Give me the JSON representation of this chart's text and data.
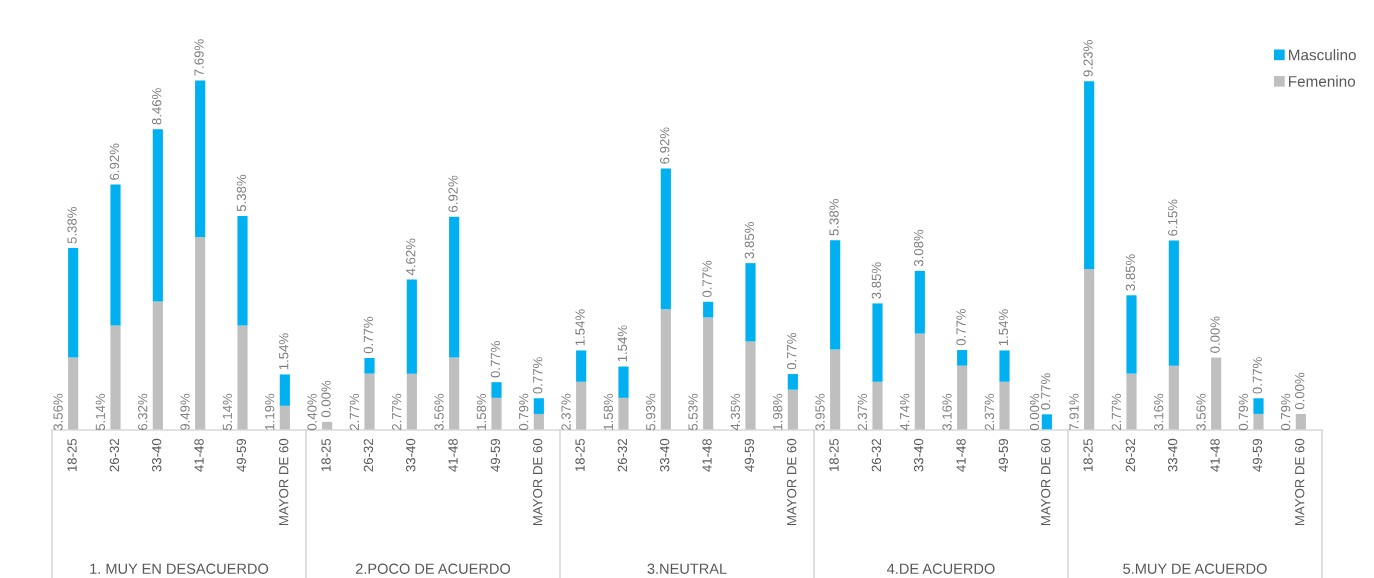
{
  "chart_data": [
    {
      "type": "bar",
      "stacked": true,
      "xlabel": "1. MUY EN DESACUERDO",
      "tick_labels": "x",
      "categories": [
        "18-25",
        "26-32",
        "33-40",
        "41-48",
        "49-59",
        "MAYOR DE 60"
      ],
      "series": [
        {
          "color": "#bfbfbf",
          "values": [
            3.56,
            5.14,
            6.32,
            9.49,
            5.14,
            1.19
          ],
          "value_labels": [
            "3.56%",
            "5.14%",
            "6.32%",
            "9.49%",
            "5.14%",
            "1.19%"
          ]
        },
        {
          "color": "#00b0f0",
          "values": [
            5.38,
            6.92,
            8.46,
            7.69,
            5.38,
            1.54
          ],
          "value_labels": [
            "5.38%",
            "6.92%",
            "8.46%",
            "7.69%",
            "5.38%",
            "1.54%"
          ]
        }
      ]
    },
    {
      "type": "bar",
      "stacked": true,
      "xlabel": "2.POCO DE ACUERDO",
      "tick_labels": "x",
      "categories": [
        "18-25",
        "26-32",
        "33-40",
        "41-48",
        "49-59",
        "MAYOR DE 60"
      ],
      "series": [
        {
          "color": "#bfbfbf",
          "values": [
            0.4,
            2.77,
            2.77,
            3.56,
            1.58,
            0.79
          ],
          "value_labels": [
            "0.40%",
            "2.77%",
            "2.77%",
            "3.56%",
            "1.58%",
            "0.79%"
          ]
        },
        {
          "color": "#00b0f0",
          "values": [
            0.0,
            0.77,
            4.62,
            6.92,
            0.77,
            0.77
          ],
          "value_labels": [
            "0.00%",
            "0.77%",
            "4.62%",
            "6.92%",
            "0.77%",
            "0.77%"
          ]
        }
      ]
    },
    {
      "type": "bar",
      "stacked": true,
      "xlabel": "3.NEUTRAL",
      "tick_labels": "x",
      "categories": [
        "18-25",
        "26-32",
        "33-40",
        "41-48",
        "49-59",
        "MAYOR DE 60"
      ],
      "series": [
        {
          "color": "#bfbfbf",
          "values": [
            2.37,
            1.58,
            5.93,
            5.53,
            4.35,
            1.98
          ],
          "value_labels": [
            "2.37%",
            "1.58%",
            "5.93%",
            "5.53%",
            "4.35%",
            "1.98%"
          ]
        },
        {
          "color": "#00b0f0",
          "values": [
            1.54,
            1.54,
            6.92,
            0.77,
            3.85,
            0.77
          ],
          "value_labels": [
            "1.54%",
            "1.54%",
            "6.92%",
            "0.77%",
            "3.85%",
            "0.77%"
          ]
        }
      ]
    },
    {
      "type": "bar",
      "stacked": true,
      "xlabel": "4.DE ACUERDO",
      "tick_labels": "x",
      "categories": [
        "18-25",
        "26-32",
        "33-40",
        "41-48",
        "49-59",
        "MAYOR DE 60"
      ],
      "series": [
        {
          "color": "#bfbfbf",
          "values": [
            3.95,
            2.37,
            4.74,
            3.16,
            2.37,
            0.0
          ],
          "value_labels": [
            "3.95%",
            "2.37%",
            "4.74%",
            "3.16%",
            "2.37%",
            "0.00%"
          ]
        },
        {
          "color": "#00b0f0",
          "values": [
            5.38,
            3.85,
            3.08,
            0.77,
            1.54,
            0.77
          ],
          "value_labels": [
            "5.38%",
            "3.85%",
            "3.08%",
            "0.77%",
            "1.54%",
            "0.77%"
          ]
        }
      ]
    },
    {
      "type": "bar",
      "stacked": true,
      "xlabel": "5.MUY DE ACUERDO",
      "tick_labels": "x",
      "legend": "top right",
      "categories": [
        "18-25",
        "26-32",
        "33-40",
        "41-48",
        "49-59",
        "MAYOR DE 60"
      ],
      "series": [
        {
          "name": "Femenino",
          "color": "#bfbfbf",
          "values": [
            7.91,
            2.77,
            3.16,
            3.56,
            0.79,
            0.79
          ],
          "value_labels": [
            "7.91%",
            "2.77%",
            "3.16%",
            "3.56%",
            "0.79%",
            "0.79%"
          ]
        },
        {
          "name": "Masculino",
          "color": "#00b0f0",
          "values": [
            9.23,
            3.85,
            6.15,
            0.0,
            0.77,
            0.0
          ],
          "value_labels": [
            "9.23%",
            "3.85%",
            "6.15%",
            "0.00%",
            "0.77%",
            "0.00%"
          ]
        }
      ]
    }
  ]
}
